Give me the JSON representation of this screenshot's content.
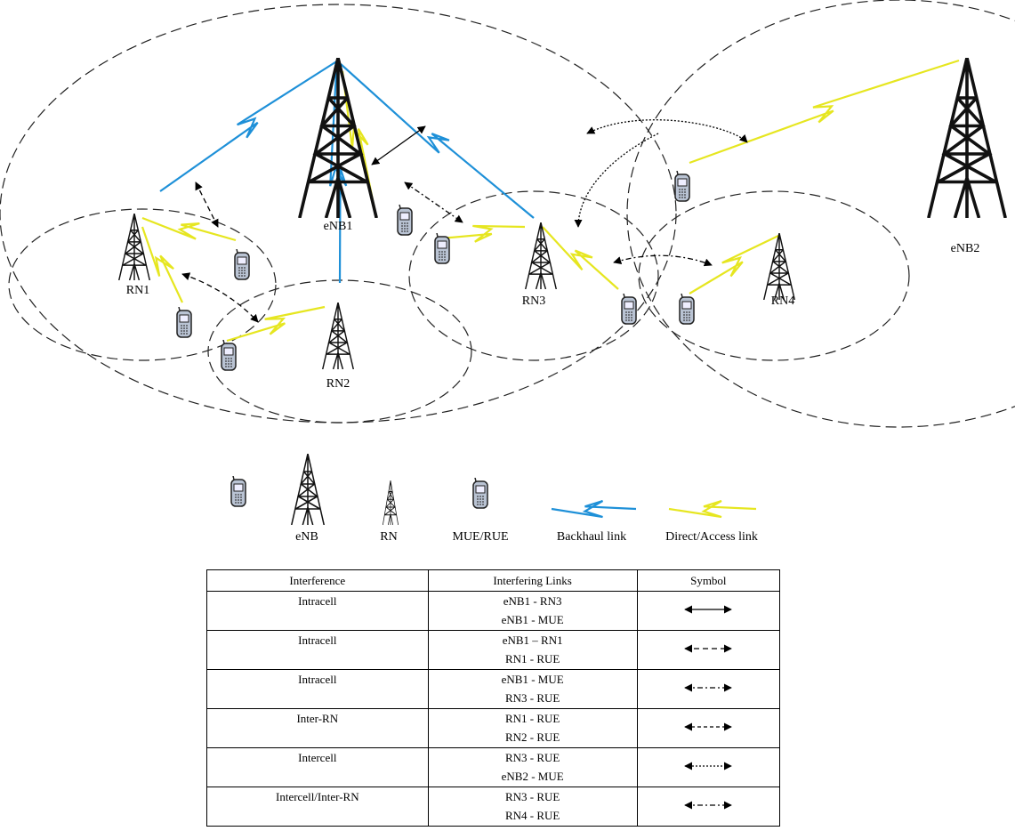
{
  "diagram": {
    "nodes": [
      {
        "label": "eNB1"
      },
      {
        "label": "eNB2"
      },
      {
        "label": "RN1"
      },
      {
        "label": "RN2"
      },
      {
        "label": "RN3"
      },
      {
        "label": "RN4"
      }
    ]
  },
  "legend": {
    "items": [
      "eNB",
      "RN",
      "MUE/RUE",
      "Backhaul link",
      "Direct/Access link"
    ]
  },
  "table": {
    "header": [
      "Interference",
      "Interfering Links",
      "Symbol"
    ],
    "rows": [
      {
        "interference": "Intracell",
        "links": [
          "eNB1 - RN3",
          "eNB1 - MUE"
        ]
      },
      {
        "interference": "Intracell",
        "links": [
          "eNB1 – RN1",
          "RN1 - RUE"
        ]
      },
      {
        "interference": "Intracell",
        "links": [
          "eNB1 - MUE",
          "RN3 - RUE"
        ]
      },
      {
        "interference": "Inter-RN",
        "links": [
          "RN1 - RUE",
          "RN2 - RUE"
        ]
      },
      {
        "interference": "Intercell",
        "links": [
          "RN3 - RUE",
          "eNB2 - MUE"
        ]
      },
      {
        "interference": "Intercell/Inter-RN",
        "links": [
          "RN3 - RUE",
          "RN4 - RUE"
        ]
      }
    ]
  }
}
